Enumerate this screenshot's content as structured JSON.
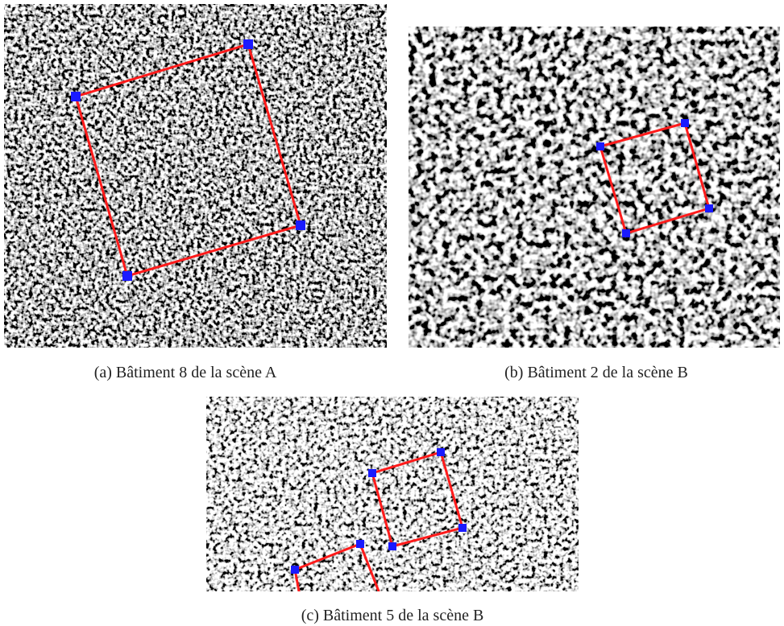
{
  "figures": [
    {
      "caption": "(a)  Bâtiment 8 de la scène A"
    },
    {
      "caption": "(b)  Bâtiment 2 de la scène B"
    },
    {
      "caption": "(c)  Bâtiment 5 de la scène B"
    }
  ]
}
